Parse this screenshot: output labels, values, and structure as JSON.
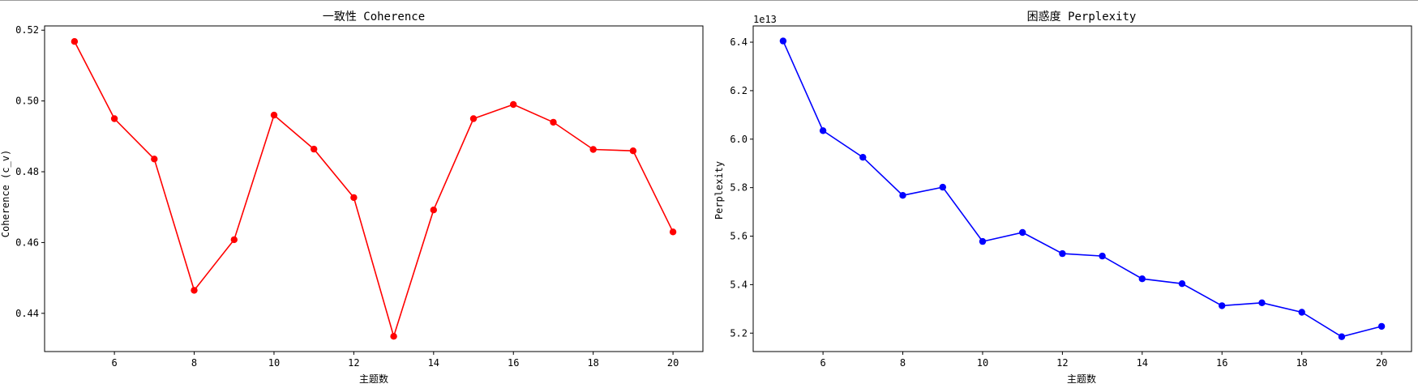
{
  "chart_data": [
    {
      "type": "line",
      "title": "一致性 Coherence",
      "xlabel": "主题数",
      "ylabel": "Coherence (c_v)",
      "x": [
        5,
        6,
        7,
        8,
        9,
        10,
        11,
        12,
        13,
        14,
        15,
        16,
        17,
        18,
        19,
        20
      ],
      "series": [
        {
          "values": [
            0.5168,
            0.495,
            0.4836,
            0.4465,
            0.4608,
            0.496,
            0.4864,
            0.4727,
            0.4335,
            0.4692,
            0.495,
            0.499,
            0.494,
            0.4863,
            0.4859,
            0.463
          ],
          "color": "#ff0000",
          "marker": "circle"
        }
      ],
      "xlim": [
        4.25,
        20.75
      ],
      "ylim": [
        0.4292,
        0.5212
      ],
      "xticks": [
        6,
        8,
        10,
        12,
        14,
        16,
        18,
        20
      ],
      "xtick_labels": [
        "6",
        "8",
        "10",
        "12",
        "14",
        "16",
        "18",
        "20"
      ],
      "yticks": [
        0.44,
        0.46,
        0.48,
        0.5,
        0.52
      ],
      "ytick_labels": [
        "0.44",
        "0.46",
        "0.48",
        "0.50",
        "0.52"
      ],
      "grid": false
    },
    {
      "type": "line",
      "title": "困惑度 Perplexity",
      "xlabel": "主题数",
      "ylabel": "Perplexity",
      "offset_text": "1e13",
      "x": [
        5,
        6,
        7,
        8,
        9,
        10,
        11,
        12,
        13,
        14,
        15,
        16,
        17,
        18,
        19,
        20
      ],
      "series": [
        {
          "values": [
            64050000000000.0,
            60350000000000.0,
            59250000000000.0,
            57680000000000.0,
            58020000000000.0,
            55780000000000.0,
            56150000000000.0,
            55280000000000.0,
            55180000000000.0,
            54240000000000.0,
            54040000000000.0,
            53130000000000.0,
            53250000000000.0,
            52860000000000.0,
            51850000000000.0,
            52280000000000.0
          ],
          "color": "#0000ff",
          "marker": "circle"
        }
      ],
      "xlim": [
        4.25,
        20.75
      ],
      "ylim": [
        51240000000000.0,
        64670000000000.0
      ],
      "xticks": [
        6,
        8,
        10,
        12,
        14,
        16,
        18,
        20
      ],
      "xtick_labels": [
        "6",
        "8",
        "10",
        "12",
        "14",
        "16",
        "18",
        "20"
      ],
      "yticks": [
        52000000000000.0,
        54000000000000.0,
        56000000000000.0,
        58000000000000.0,
        60000000000000.0,
        62000000000000.0,
        64000000000000.0
      ],
      "ytick_labels": [
        "5.2",
        "5.4",
        "5.6",
        "5.8",
        "6.0",
        "6.2",
        "6.4"
      ],
      "grid": false
    }
  ]
}
